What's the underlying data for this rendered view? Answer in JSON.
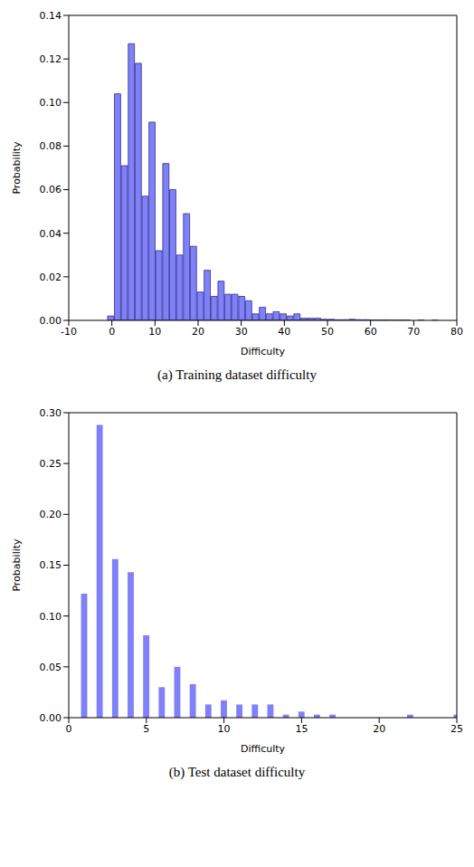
{
  "chart_data": [
    {
      "type": "histogram",
      "title": "(a) Training dataset difficulty",
      "x_label": "Difficulty",
      "y_label": "Probability",
      "bins": [
        -1,
        0.6,
        2.2,
        3.8,
        5.4,
        7,
        8.6,
        10.2,
        11.8,
        13.4,
        15,
        16.6,
        18.2,
        19.8,
        21.4,
        23,
        24.6,
        26.2,
        27.8,
        29.4,
        31,
        32.6,
        34.2,
        35.8,
        37.4,
        39,
        40.6,
        42.2,
        43.8,
        45.4,
        47,
        48.6,
        50.2,
        51.8,
        53.4,
        55,
        56.6,
        58.2,
        59.8,
        61.4,
        63,
        64.6,
        66.2,
        67.8,
        69.4,
        71,
        72.6,
        74.2,
        75.8,
        77.4,
        79
      ],
      "counts": [
        0.002,
        0.104,
        0.071,
        0.127,
        0.118,
        0.057,
        0.091,
        0.032,
        0.072,
        0.06,
        0.03,
        0.049,
        0.034,
        0.013,
        0.023,
        0.011,
        0.018,
        0.012,
        0.012,
        0.011,
        0.009,
        0.003,
        0.006,
        0.003,
        0.004,
        0.003,
        0.002,
        0.003,
        0.001,
        0.001,
        0.001,
        0.0005,
        0.0005,
        0.0003,
        0.0003,
        0.0005,
        0.0003,
        0.0003,
        0.0002,
        0.0002,
        0.0002,
        0.0001,
        0.0001,
        0.0001,
        0,
        0.0001,
        0,
        0.0001,
        0,
        0
      ],
      "xlim": [
        -10,
        80
      ],
      "xticks": [
        -10,
        0,
        10,
        20,
        30,
        40,
        50,
        60,
        70,
        80
      ],
      "ylim": [
        0,
        0.14
      ],
      "yticks": [
        {
          "value": 0,
          "label": "0.00"
        },
        {
          "value": 0.02,
          "label": "0.02"
        },
        {
          "value": 0.04,
          "label": "0.04"
        },
        {
          "value": 0.06,
          "label": "0.06"
        },
        {
          "value": 0.08,
          "label": "0.08"
        },
        {
          "value": 0.1,
          "label": "0.10"
        },
        {
          "value": 0.12,
          "label": "0.12"
        },
        {
          "value": 0.14,
          "label": "0.14"
        }
      ],
      "color": "#8080f8"
    },
    {
      "type": "bar",
      "title": "(b) Test dataset difficulty",
      "x_label": "Difficulty",
      "y_label": "Probability",
      "x": [
        1,
        2,
        3,
        4,
        5,
        6,
        7,
        8,
        9,
        10,
        11,
        12,
        13,
        14,
        15,
        16,
        17,
        18,
        19,
        20,
        21,
        22,
        23,
        24,
        25
      ],
      "values": [
        0.122,
        0.288,
        0.156,
        0.143,
        0.081,
        0.03,
        0.05,
        0.033,
        0.013,
        0.017,
        0.013,
        0.013,
        0.013,
        0.003,
        0.006,
        0.003,
        0.003,
        0,
        0,
        0,
        0,
        0.003,
        0,
        0,
        0.003
      ],
      "xlim": [
        0,
        25
      ],
      "xticks": [
        0,
        5,
        10,
        15,
        20,
        25
      ],
      "ylim": [
        0,
        0.3
      ],
      "yticks": [
        {
          "value": 0,
          "label": "0.00"
        },
        {
          "value": 0.05,
          "label": "0.05"
        },
        {
          "value": 0.1,
          "label": "0.10"
        },
        {
          "value": 0.15,
          "label": "0.15"
        },
        {
          "value": 0.2,
          "label": "0.20"
        },
        {
          "value": 0.25,
          "label": "0.25"
        },
        {
          "value": 0.3,
          "label": "0.30"
        }
      ],
      "color": "#8080f8"
    }
  ]
}
